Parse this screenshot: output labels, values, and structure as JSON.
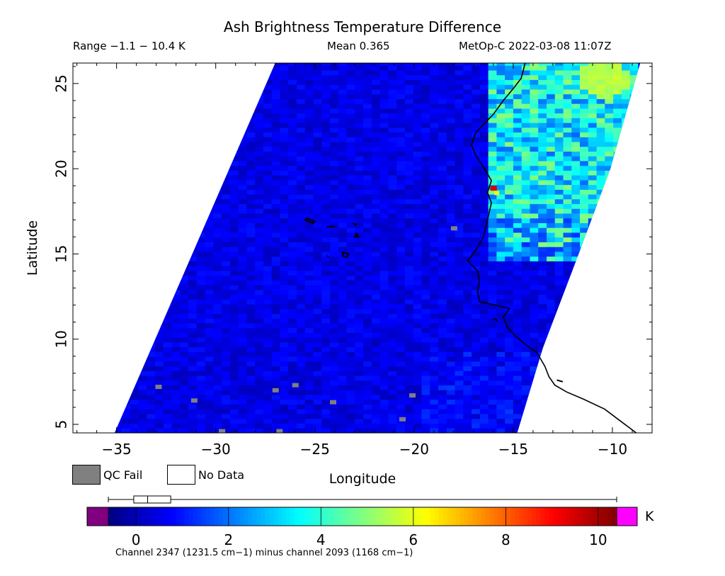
{
  "header": {
    "title": "Ash Brightness Temperature Difference",
    "range": "Range −1.1 − 10.4 K",
    "mean": "Mean 0.365",
    "satellite": "MetOp-C 2022-03-08 11:07Z"
  },
  "legend": {
    "qc_fail_label": "QC Fail",
    "no_data_label": "No Data",
    "qc_fail_color": "#808080",
    "no_data_color": "#ffffff"
  },
  "colorbar": {
    "unit": "K",
    "caption": "Channel 2347 (1231.5 cm−1) minus channel 2093 (1168 cm−1)",
    "range": [
      -1.2,
      10.4
    ],
    "ticks": [
      "0",
      "2",
      "4",
      "6",
      "8",
      "10"
    ],
    "under_color": "#800080",
    "over_color": "#ff00ff",
    "colors": [
      "#000080",
      "#0000ff",
      "#0080ff",
      "#00ffff",
      "#80ff80",
      "#ffff00",
      "#ff8000",
      "#ff0000",
      "#800000"
    ],
    "boxplot": {
      "min": -1.1,
      "q1": -0.05,
      "median": 0.25,
      "q3": 0.75,
      "max": 10.4
    }
  },
  "chart_data": {
    "type": "heatmap",
    "title": "Ash Brightness Temperature Difference",
    "xlabel": "Longitude",
    "ylabel": "Latitude",
    "xlim": [
      -37.2,
      -8
    ],
    "ylim": [
      4.5,
      26.2
    ],
    "xticks": [
      "−35",
      "−30",
      "−25",
      "−20",
      "−15",
      "−10"
    ],
    "xtick_values": [
      -35,
      -30,
      -25,
      -20,
      -15,
      -10
    ],
    "yticks": [
      "5",
      "10",
      "15",
      "20",
      "25"
    ],
    "ytick_values": [
      5,
      10,
      15,
      20,
      25
    ],
    "swath": {
      "left_edge": [
        [
          -35.1,
          4.5
        ],
        [
          -27.0,
          26.2
        ]
      ],
      "right_edge": [
        [
          -14.8,
          4.5
        ],
        [
          -13.5,
          9.5
        ],
        [
          -11.7,
          15.0
        ],
        [
          -10.1,
          20.0
        ],
        [
          -8.6,
          26.2
        ]
      ]
    },
    "background_value": 0.5,
    "elevated_region": {
      "lon_range": [
        -16.5,
        -9.0
      ],
      "lat_range": [
        14.5,
        26.2
      ],
      "values_k": [
        2.5,
        3.5,
        4.5
      ],
      "peak_k": 5.5,
      "peak_location": [
        -10.6,
        25.2
      ]
    },
    "hotspot": {
      "lon": -15.9,
      "lat": 18.8,
      "value_k": 9.5
    },
    "qc_fail_pixels": [
      [
        -18.0,
        16.5
      ],
      [
        -32.9,
        7.2
      ],
      [
        -31.1,
        6.4
      ],
      [
        -27.0,
        7.0
      ],
      [
        -26.0,
        7.3
      ],
      [
        -24.1,
        6.3
      ],
      [
        -20.1,
        6.7
      ],
      [
        -20.6,
        5.3
      ],
      [
        -29.7,
        4.6
      ],
      [
        -26.8,
        4.6
      ]
    ],
    "coastline": [
      [
        -8.8,
        4.5
      ],
      [
        -9.6,
        5.2
      ],
      [
        -10.4,
        5.9
      ],
      [
        -11.5,
        6.5
      ],
      [
        -12.3,
        6.9
      ],
      [
        -12.9,
        7.3
      ],
      [
        -13.2,
        7.8
      ],
      [
        -13.4,
        8.4
      ],
      [
        -13.8,
        9.2
      ],
      [
        -14.4,
        9.7
      ],
      [
        -14.9,
        10.2
      ],
      [
        -15.3,
        10.7
      ],
      [
        -15.5,
        11.3
      ],
      [
        -15.2,
        11.8
      ],
      [
        -15.9,
        12.0
      ],
      [
        -16.7,
        12.2
      ],
      [
        -16.8,
        12.8
      ],
      [
        -16.7,
        13.4
      ],
      [
        -16.8,
        14.0
      ],
      [
        -17.3,
        14.6
      ],
      [
        -16.9,
        15.2
      ],
      [
        -16.5,
        16.0
      ],
      [
        -16.3,
        17.0
      ],
      [
        -16.1,
        18.0
      ],
      [
        -16.3,
        18.6
      ],
      [
        -16.1,
        19.3
      ],
      [
        -16.4,
        19.9
      ],
      [
        -16.9,
        20.8
      ],
      [
        -17.1,
        21.4
      ],
      [
        -16.9,
        22.1
      ],
      [
        -16.5,
        22.6
      ],
      [
        -16.0,
        23.2
      ],
      [
        -15.5,
        24.0
      ],
      [
        -15.0,
        24.7
      ],
      [
        -14.6,
        25.3
      ],
      [
        -14.4,
        26.2
      ]
    ],
    "islands": [
      [
        [
          -25.4,
          17.1
        ],
        [
          -25.0,
          16.9
        ],
        [
          -25.1,
          16.8
        ],
        [
          -25.5,
          17.0
        ]
      ],
      [
        [
          -24.4,
          16.6
        ],
        [
          -24.0,
          16.6
        ]
      ],
      [
        [
          -23.1,
          16.8
        ],
        [
          -22.9,
          16.7
        ]
      ],
      [
        [
          -22.9,
          16.2
        ],
        [
          -22.8,
          16.0
        ],
        [
          -23.0,
          16.0
        ]
      ],
      [
        [
          -23.6,
          15.1
        ],
        [
          -23.3,
          15.0
        ],
        [
          -23.4,
          14.8
        ],
        [
          -23.6,
          14.9
        ]
      ],
      [
        [
          -24.4,
          14.9
        ],
        [
          -24.3,
          14.8
        ]
      ],
      [
        [
          -16.0,
          11.2
        ],
        [
          -15.8,
          11.1
        ]
      ],
      [
        [
          -12.8,
          7.6
        ],
        [
          -12.5,
          7.5
        ]
      ]
    ]
  }
}
